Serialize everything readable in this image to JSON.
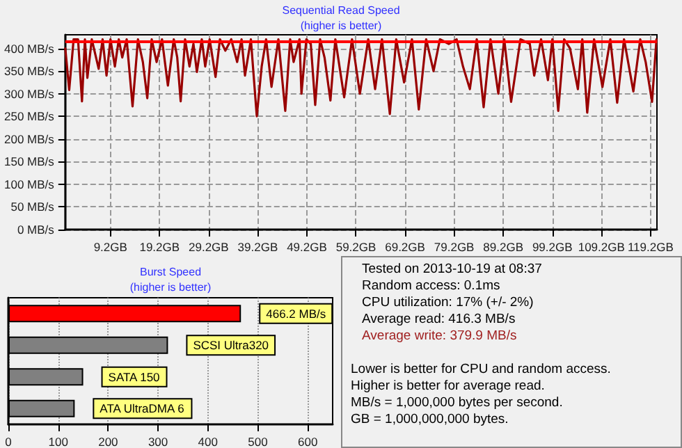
{
  "chart_data": [
    {
      "type": "line",
      "title": "Sequential Read Speed",
      "subtitle": "(higher is better)",
      "xlim": [
        0,
        120.5
      ],
      "xticks": [
        {
          "value": 9.2,
          "label": "9.2GB"
        },
        {
          "value": 19.2,
          "label": "19.2GB"
        },
        {
          "value": 29.2,
          "label": "29.2GB"
        },
        {
          "value": 39.2,
          "label": "39.2GB"
        },
        {
          "value": 49.2,
          "label": "49.2GB"
        },
        {
          "value": 59.2,
          "label": "59.2GB"
        },
        {
          "value": 69.2,
          "label": "69.2GB"
        },
        {
          "value": 79.2,
          "label": "79.2GB"
        },
        {
          "value": 89.2,
          "label": "89.2GB"
        },
        {
          "value": 99.2,
          "label": "99.2GB"
        },
        {
          "value": 109.2,
          "label": "109.2GB"
        },
        {
          "value": 119.2,
          "label": "119.2GB"
        }
      ],
      "ylim": [
        0,
        430
      ],
      "yticks": [
        {
          "value": 0,
          "label": "0 MB/s"
        },
        {
          "value": 50,
          "label": "50 MB/s"
        },
        {
          "value": 100,
          "label": "100 MB/s"
        },
        {
          "value": 150,
          "label": "150 MB/s"
        },
        {
          "value": 200,
          "label": "200 MB/s"
        },
        {
          "value": 250,
          "label": "250 MB/s"
        },
        {
          "value": 300,
          "label": "300 MB/s"
        },
        {
          "value": 350,
          "label": "350 MB/s"
        },
        {
          "value": 400,
          "label": "400 MB/s"
        }
      ],
      "grid": true,
      "marker": "none",
      "line_style": "solid",
      "ref_lines": [
        {
          "axis": "y",
          "value": 416.3,
          "color": "#ff0000"
        }
      ],
      "series": [
        {
          "color": "#990000",
          "x": [
            0,
            0.8,
            1.7,
            2.6,
            3.4,
            4.0,
            4.5,
            5.4,
            6.8,
            7.6,
            8.4,
            9.2,
            10.1,
            10.9,
            11.6,
            12.5,
            13.7,
            14.8,
            15.8,
            16.7,
            17.6,
            18.6,
            19.7,
            20.9,
            22.1,
            22.8,
            23.5,
            24.4,
            25.3,
            26.1,
            26.8,
            27.8,
            28.5,
            29.4,
            30.6,
            31.5,
            32.6,
            33.8,
            35.0,
            35.9,
            36.6,
            37.8,
            39.0,
            40.0,
            40.9,
            42.0,
            43.4,
            44.8,
            45.8,
            46.5,
            47.7,
            48.1,
            49.1,
            50.0,
            50.9,
            51.9,
            52.8,
            54.0,
            55.0,
            56.8,
            58.4,
            60.0,
            61.7,
            63.1,
            64.5,
            66.1,
            67.4,
            69.0,
            70.6,
            72.0,
            73.5,
            75.0,
            76.3,
            78.1,
            79.7,
            81.0,
            82.4,
            83.8,
            85.2,
            86.6,
            88.2,
            89.4,
            90.8,
            92.7,
            94.6,
            95.5,
            96.9,
            98.3,
            99.2,
            100.4,
            101.6,
            102.8,
            104.4,
            105.3,
            106.3,
            107.7,
            109.4,
            111.0,
            112.4,
            113.8,
            115.7,
            117.1,
            118.2,
            119.5,
            120.4
          ],
          "values": [
            400,
            308,
            420,
            420,
            283,
            420,
            335,
            420,
            355,
            420,
            340,
            420,
            360,
            420,
            380,
            420,
            272,
            420,
            370,
            290,
            420,
            370,
            420,
            318,
            420,
            380,
            283,
            420,
            360,
            410,
            348,
            420,
            360,
            420,
            337,
            420,
            395,
            420,
            370,
            420,
            340,
            420,
            250,
            360,
            420,
            315,
            420,
            262,
            420,
            370,
            420,
            300,
            420,
            410,
            275,
            420,
            380,
            285,
            420,
            292,
            420,
            300,
            420,
            310,
            420,
            255,
            420,
            325,
            420,
            265,
            420,
            350,
            420,
            410,
            420,
            360,
            310,
            420,
            270,
            420,
            300,
            420,
            282,
            420,
            410,
            340,
            420,
            330,
            420,
            262,
            420,
            400,
            310,
            420,
            258,
            420,
            315,
            420,
            280,
            420,
            305,
            420,
            370,
            282,
            420
          ]
        }
      ]
    },
    {
      "type": "bar",
      "orientation": "horizontal",
      "title": "Burst Speed",
      "subtitle": "(higher is better)",
      "categories": [
        null,
        "SCSI Ultra320",
        "SATA 150",
        "ATA UltraDMA 6"
      ],
      "values": [
        466.2,
        320,
        150,
        133
      ],
      "colors": [
        "#ff0000",
        "#808080",
        "#808080",
        "#808080"
      ],
      "value_labels": [
        "466.2 MB/s",
        null,
        null,
        null
      ],
      "xlim": [
        0,
        650
      ],
      "xticks": [
        0,
        100,
        200,
        300,
        400,
        500,
        600
      ],
      "grid": "x",
      "tick_labels": "x"
    },
    {
      "type": "other",
      "annotations": [
        "Tested on 2013-10-19 at 08:37",
        "Random access: 0.1ms",
        "CPU utilization: 17% (+/- 2%)",
        "Average read: 416.3 MB/s",
        "Average write: 379.9 MB/s",
        "Lower is better for CPU and random access.",
        "Higher is better for average read.",
        "MB/s = 1,000,000 bytes per second.",
        "GB = 1,000,000,000 bytes."
      ]
    }
  ]
}
